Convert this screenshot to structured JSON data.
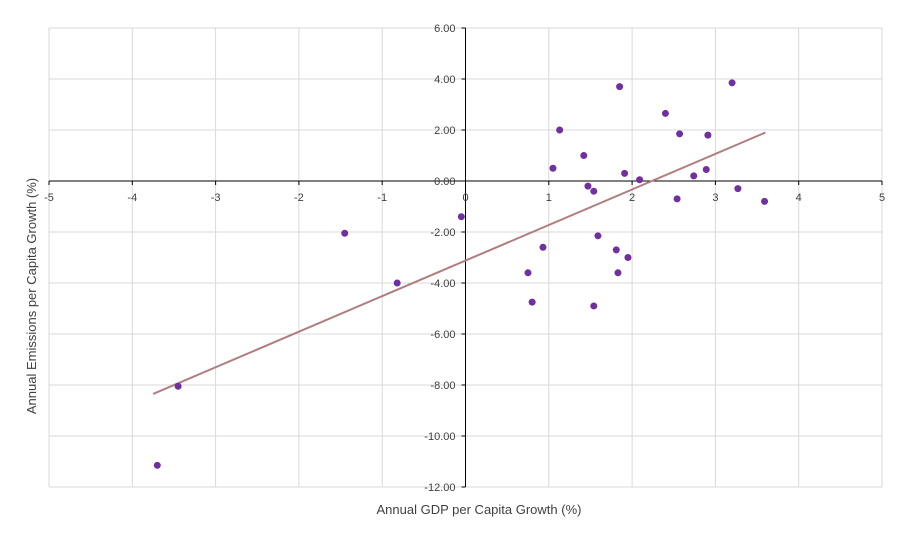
{
  "chart_data": {
    "type": "scatter",
    "title": "",
    "xlabel": "Annual GDP per Capita Growth (%)",
    "ylabel": "Annual Emissions per Capita Growth (%)",
    "xlim": [
      -5,
      5
    ],
    "ylim": [
      -12,
      6
    ],
    "xticks": [
      -5,
      -4,
      -3,
      -2,
      -1,
      0,
      1,
      2,
      3,
      4,
      5
    ],
    "xtick_labels": [
      "-5",
      "-4",
      "-3",
      "-2",
      "-1",
      "0",
      "1",
      "2",
      "3",
      "4",
      "5"
    ],
    "yticks": [
      6,
      4,
      2,
      0,
      -2,
      -4,
      -6,
      -8,
      -10,
      -12
    ],
    "ytick_labels": [
      "6.00",
      "4.00",
      "2.00",
      "0.00",
      "-2.00",
      "-4.00",
      "-6.00",
      "-8.00",
      "-10.00",
      "-12.00"
    ],
    "grid": true,
    "legend": "none",
    "colors": {
      "points": "#7030A0",
      "trendline": "#B07E80",
      "grid": "#D9D9D9",
      "axis": "#000000"
    },
    "points": [
      {
        "x": -3.7,
        "y": -11.15
      },
      {
        "x": -3.45,
        "y": -8.05
      },
      {
        "x": -1.45,
        "y": -2.05
      },
      {
        "x": -0.82,
        "y": -4.0
      },
      {
        "x": -0.05,
        "y": -1.4
      },
      {
        "x": 0.75,
        "y": -3.6
      },
      {
        "x": 0.8,
        "y": -4.75
      },
      {
        "x": 0.93,
        "y": -2.6
      },
      {
        "x": 1.05,
        "y": 0.5
      },
      {
        "x": 1.13,
        "y": 2.0
      },
      {
        "x": 1.42,
        "y": 1.0
      },
      {
        "x": 1.47,
        "y": -0.2
      },
      {
        "x": 1.54,
        "y": -0.4
      },
      {
        "x": 1.54,
        "y": -4.9
      },
      {
        "x": 1.59,
        "y": -2.15
      },
      {
        "x": 1.81,
        "y": -2.7
      },
      {
        "x": 1.83,
        "y": -3.6
      },
      {
        "x": 1.85,
        "y": 3.7
      },
      {
        "x": 1.91,
        "y": 0.3
      },
      {
        "x": 1.95,
        "y": -3.0
      },
      {
        "x": 2.09,
        "y": 0.05
      },
      {
        "x": 2.4,
        "y": 2.65
      },
      {
        "x": 2.54,
        "y": -0.7
      },
      {
        "x": 2.57,
        "y": 1.85
      },
      {
        "x": 2.74,
        "y": 0.2
      },
      {
        "x": 2.89,
        "y": 0.45
      },
      {
        "x": 2.91,
        "y": 1.8
      },
      {
        "x": 3.2,
        "y": 3.85
      },
      {
        "x": 3.27,
        "y": -0.3
      },
      {
        "x": 3.59,
        "y": -0.8
      }
    ],
    "trendline": {
      "type": "linear",
      "x0": -3.75,
      "y0": -8.35,
      "x1": 3.6,
      "y1": 1.9
    }
  }
}
